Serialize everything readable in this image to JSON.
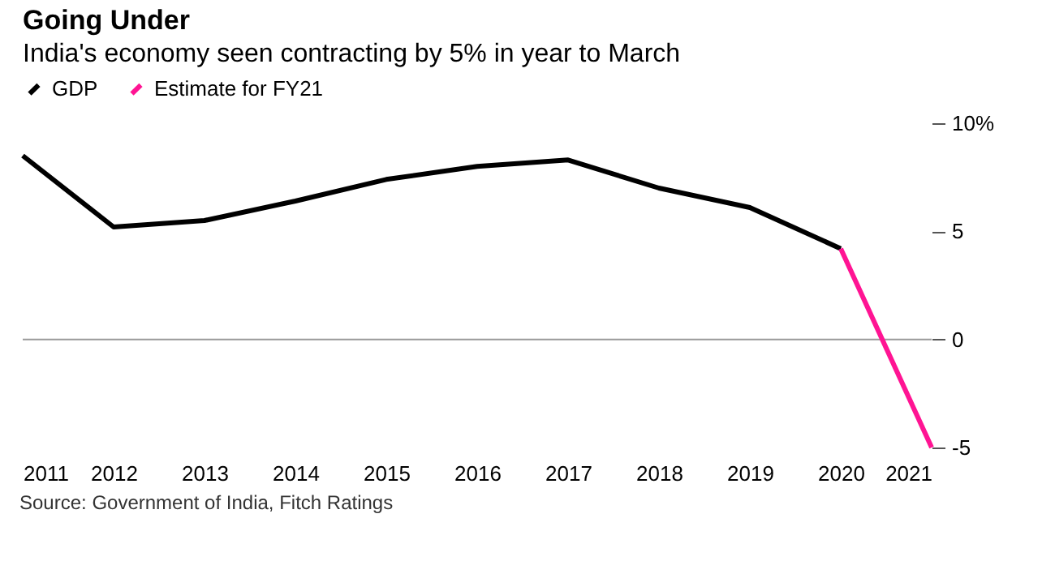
{
  "chart_data": {
    "type": "line",
    "title": "Going Under",
    "subtitle": "India's economy seen contracting by 5% in year to March",
    "series": [
      {
        "name": "GDP",
        "color": "#000000",
        "x": [
          2011,
          2012,
          2013,
          2014,
          2015,
          2016,
          2017,
          2018,
          2019,
          2020
        ],
        "values": [
          8.5,
          5.2,
          5.5,
          6.4,
          7.4,
          8.0,
          8.3,
          7.0,
          6.1,
          4.2
        ]
      },
      {
        "name": "Estimate for FY21",
        "color": "#ff1493",
        "x": [
          2020,
          2021
        ],
        "values": [
          4.2,
          -5
        ]
      }
    ],
    "xlim": [
      2011,
      2021
    ],
    "xticks": [
      2011,
      2012,
      2013,
      2014,
      2015,
      2016,
      2017,
      2018,
      2019,
      2020,
      2021
    ],
    "ylim": [
      -5,
      10
    ],
    "yticks": [
      {
        "value": -5,
        "label": "-5"
      },
      {
        "value": 0,
        "label": "0"
      },
      {
        "value": 5,
        "label": "5"
      },
      {
        "value": 10,
        "label": "10%"
      }
    ],
    "ref_lines": [
      {
        "axis": "y",
        "value": 0,
        "color": "#999999"
      }
    ],
    "legend": "top left",
    "grid": false,
    "line_style": "solid",
    "marker": "none",
    "annotations": [
      "Source: Government of India, Fitch Ratings"
    ]
  }
}
